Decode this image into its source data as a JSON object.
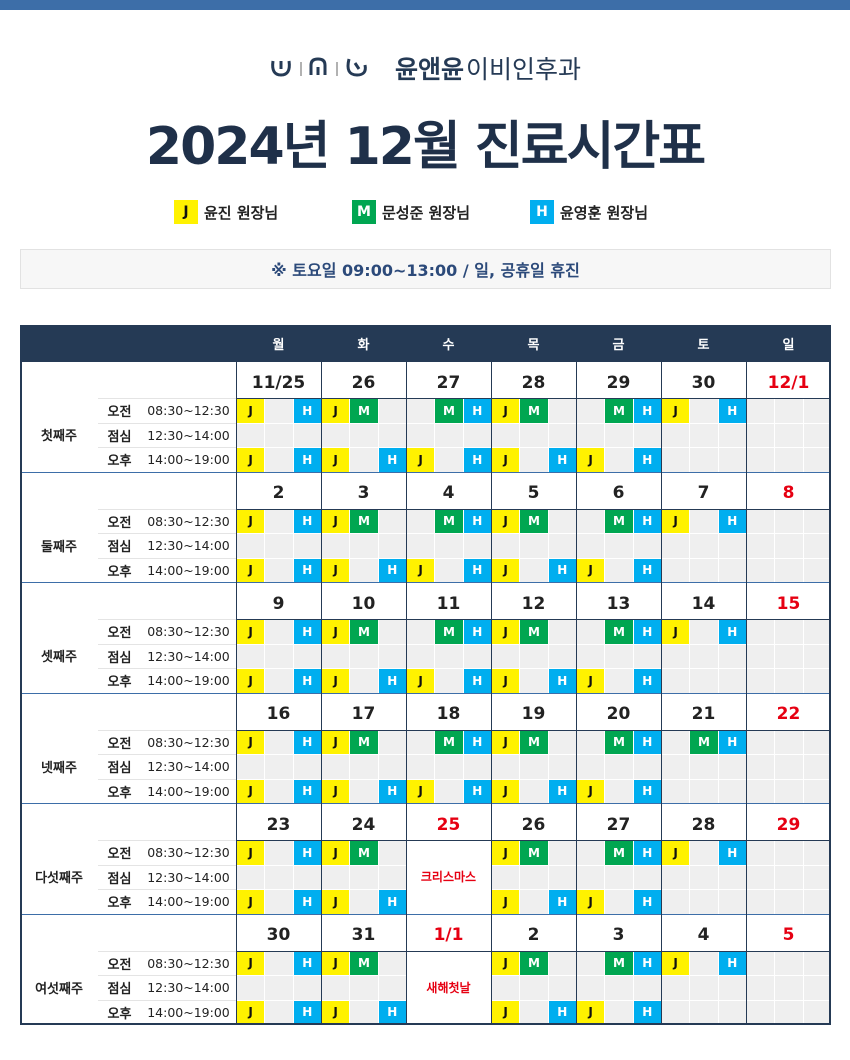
{
  "logo": {
    "brand": "윤앤윤",
    "clinic": "이비인후과"
  },
  "title": "2024년 12월 진료시간표",
  "legend": [
    {
      "key": "J",
      "name": "윤진 원장님",
      "color": "#fff200",
      "text_color": "#111111"
    },
    {
      "key": "M",
      "name": "문성준 원장님",
      "color": "#00a651",
      "text_color": "#ffffff"
    },
    {
      "key": "H",
      "name": "윤영훈 원장님",
      "color": "#00aeef",
      "text_color": "#ffffff"
    }
  ],
  "notice": "※ 토요일  09:00~13:00 / 일, 공휴일 휴진",
  "weekdays": [
    "월",
    "화",
    "수",
    "목",
    "금",
    "토",
    "일"
  ],
  "rows": [
    {
      "label": "오전",
      "time": "08:30~12:30"
    },
    {
      "label": "점심",
      "time": "12:30~14:00"
    },
    {
      "label": "오후",
      "time": "14:00~19:00"
    }
  ],
  "weeks": [
    {
      "label": "첫째주",
      "days": [
        {
          "date": "11/25",
          "am": [
            "J",
            null,
            "H"
          ],
          "pm": [
            "J",
            null,
            "H"
          ]
        },
        {
          "date": "26",
          "am": [
            "J",
            "M",
            null
          ],
          "pm": [
            "J",
            null,
            "H"
          ]
        },
        {
          "date": "27",
          "am": [
            null,
            "M",
            "H"
          ],
          "pm": [
            "J",
            null,
            "H"
          ]
        },
        {
          "date": "28",
          "am": [
            "J",
            "M",
            null
          ],
          "pm": [
            "J",
            null,
            "H"
          ]
        },
        {
          "date": "29",
          "am": [
            null,
            "M",
            "H"
          ],
          "pm": [
            "J",
            null,
            "H"
          ]
        },
        {
          "date": "30",
          "am": [
            "J",
            null,
            "H"
          ]
        },
        {
          "date": "12/1"
        }
      ]
    },
    {
      "label": "둘째주",
      "days": [
        {
          "date": "2",
          "am": [
            "J",
            null,
            "H"
          ],
          "pm": [
            "J",
            null,
            "H"
          ]
        },
        {
          "date": "3",
          "am": [
            "J",
            "M",
            null
          ],
          "pm": [
            "J",
            null,
            "H"
          ]
        },
        {
          "date": "4",
          "am": [
            null,
            "M",
            "H"
          ],
          "pm": [
            "J",
            null,
            "H"
          ]
        },
        {
          "date": "5",
          "am": [
            "J",
            "M",
            null
          ],
          "pm": [
            "J",
            null,
            "H"
          ]
        },
        {
          "date": "6",
          "am": [
            null,
            "M",
            "H"
          ],
          "pm": [
            "J",
            null,
            "H"
          ]
        },
        {
          "date": "7",
          "am": [
            "J",
            null,
            "H"
          ]
        },
        {
          "date": "8"
        }
      ]
    },
    {
      "label": "셋째주",
      "days": [
        {
          "date": "9",
          "am": [
            "J",
            null,
            "H"
          ],
          "pm": [
            "J",
            null,
            "H"
          ]
        },
        {
          "date": "10",
          "am": [
            "J",
            "M",
            null
          ],
          "pm": [
            "J",
            null,
            "H"
          ]
        },
        {
          "date": "11",
          "am": [
            null,
            "M",
            "H"
          ],
          "pm": [
            "J",
            null,
            "H"
          ]
        },
        {
          "date": "12",
          "am": [
            "J",
            "M",
            null
          ],
          "pm": [
            "J",
            null,
            "H"
          ]
        },
        {
          "date": "13",
          "am": [
            null,
            "M",
            "H"
          ],
          "pm": [
            "J",
            null,
            "H"
          ]
        },
        {
          "date": "14",
          "am": [
            "J",
            null,
            "H"
          ]
        },
        {
          "date": "15"
        }
      ]
    },
    {
      "label": "넷째주",
      "days": [
        {
          "date": "16",
          "am": [
            "J",
            null,
            "H"
          ],
          "pm": [
            "J",
            null,
            "H"
          ]
        },
        {
          "date": "17",
          "am": [
            "J",
            "M",
            null
          ],
          "pm": [
            "J",
            null,
            "H"
          ]
        },
        {
          "date": "18",
          "am": [
            null,
            "M",
            "H"
          ],
          "pm": [
            "J",
            null,
            "H"
          ]
        },
        {
          "date": "19",
          "am": [
            "J",
            "M",
            null
          ],
          "pm": [
            "J",
            null,
            "H"
          ]
        },
        {
          "date": "20",
          "am": [
            null,
            "M",
            "H"
          ],
          "pm": [
            "J",
            null,
            "H"
          ]
        },
        {
          "date": "21",
          "am": [
            null,
            "M",
            "H"
          ]
        },
        {
          "date": "22"
        }
      ]
    },
    {
      "label": "다섯째주",
      "days": [
        {
          "date": "23",
          "am": [
            "J",
            null,
            "H"
          ],
          "pm": [
            "J",
            null,
            "H"
          ]
        },
        {
          "date": "24",
          "am": [
            "J",
            "M",
            null
          ],
          "pm": [
            "J",
            null,
            "H"
          ]
        },
        {
          "date": "25",
          "note": "크리스마스"
        },
        {
          "date": "26",
          "am": [
            "J",
            "M",
            null
          ],
          "pm": [
            "J",
            null,
            "H"
          ]
        },
        {
          "date": "27",
          "am": [
            null,
            "M",
            "H"
          ],
          "pm": [
            "J",
            null,
            "H"
          ]
        },
        {
          "date": "28",
          "am": [
            "J",
            null,
            "H"
          ]
        },
        {
          "date": "29"
        }
      ]
    },
    {
      "label": "여섯째주",
      "days": [
        {
          "date": "30",
          "am": [
            "J",
            null,
            "H"
          ],
          "pm": [
            "J",
            null,
            "H"
          ]
        },
        {
          "date": "31",
          "am": [
            "J",
            "M",
            null
          ],
          "pm": [
            "J",
            null,
            "H"
          ]
        },
        {
          "date": "1/1",
          "note": "새해첫날"
        },
        {
          "date": "2",
          "am": [
            "J",
            "M",
            null
          ],
          "pm": [
            "J",
            null,
            "H"
          ]
        },
        {
          "date": "3",
          "am": [
            null,
            "M",
            "H"
          ],
          "pm": [
            "J",
            null,
            "H"
          ]
        },
        {
          "date": "4",
          "am": [
            "J",
            null,
            "H"
          ]
        },
        {
          "date": "5"
        }
      ]
    }
  ]
}
